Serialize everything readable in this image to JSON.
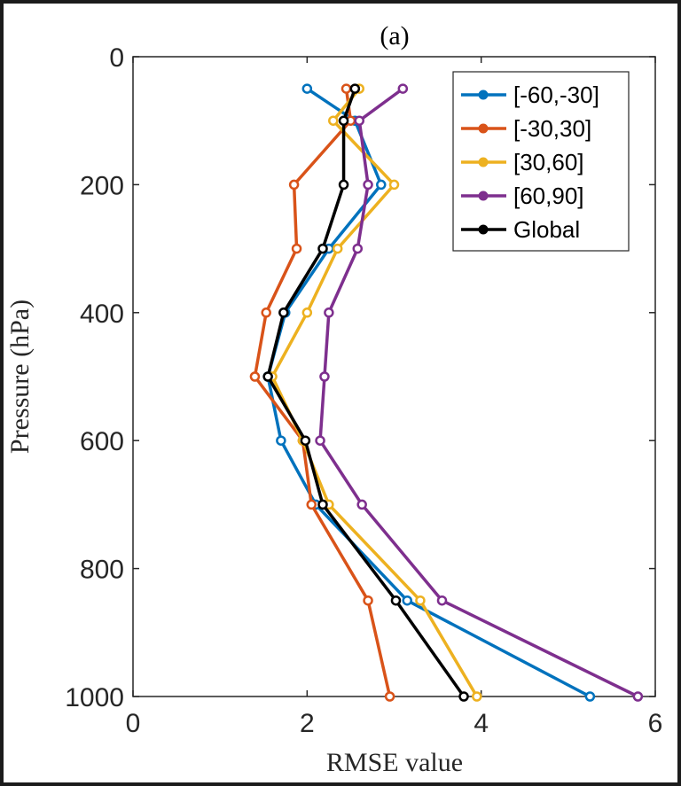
{
  "chart_data": {
    "type": "line",
    "title": "(a)",
    "xlabel": "RMSE value",
    "ylabel": "Pressure (hPa)",
    "xlim": [
      0,
      6
    ],
    "ylim": [
      0,
      1000
    ],
    "y_reversed": true,
    "xticks": [
      "0",
      "2",
      "4",
      "6"
    ],
    "yticks": [
      "0",
      "200",
      "400",
      "600",
      "800",
      "1000"
    ],
    "legend_position": "top-right",
    "y": [
      50,
      100,
      200,
      300,
      400,
      500,
      600,
      700,
      850,
      1000
    ],
    "series": [
      {
        "name": "[-60,-30]",
        "color": "#0072BD",
        "values": [
          2.0,
          2.55,
          2.85,
          2.25,
          1.75,
          1.55,
          1.7,
          2.1,
          3.15,
          5.25
        ]
      },
      {
        "name": "[-30,30]",
        "color": "#D95319",
        "values": [
          2.45,
          2.5,
          1.85,
          1.88,
          1.53,
          1.4,
          1.95,
          2.05,
          2.7,
          2.95
        ]
      },
      {
        "name": "[30,60]",
        "color": "#EDB120",
        "values": [
          2.6,
          2.3,
          3.0,
          2.35,
          2.0,
          1.6,
          1.95,
          2.25,
          3.3,
          3.95
        ]
      },
      {
        "name": "[60,90]",
        "color": "#7E2F8E",
        "values": [
          3.1,
          2.6,
          2.7,
          2.58,
          2.25,
          2.2,
          2.15,
          2.63,
          3.55,
          5.8
        ]
      },
      {
        "name": "Global",
        "color": "#000000",
        "values": [
          2.55,
          2.42,
          2.42,
          2.18,
          1.73,
          1.55,
          1.98,
          2.18,
          3.02,
          3.8
        ]
      }
    ]
  }
}
